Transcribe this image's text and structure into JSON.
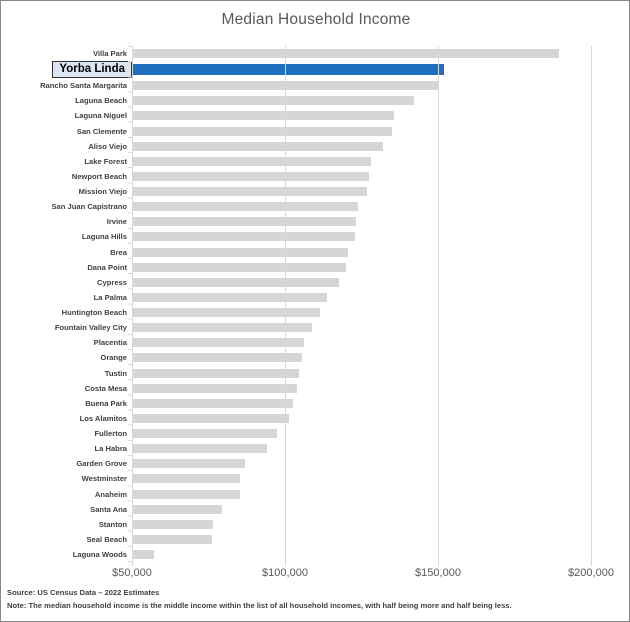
{
  "title": "Median Household Income",
  "footer": {
    "source": "Source: US Census Data – 2022 Estimates",
    "note": "Note: The median household income is the middle income within the list of all household incomes, with half being more and half being less."
  },
  "colors": {
    "bar_gray": "#d6d6d6",
    "bar_highlight_blue": "#1f6fbe",
    "highlight_box_fill": "#dce6f2",
    "highlight_box_border": "#303030",
    "title_text": "#595959",
    "category_text": "#404040",
    "gridline": "#d9d9d9"
  },
  "chart_data": {
    "type": "bar",
    "orientation": "horizontal",
    "title": "Median Household Income",
    "xlabel": "",
    "ylabel": "",
    "grid": "vertical-gridlines",
    "legend_position": "none",
    "xlim": [
      50000,
      202000
    ],
    "tick_values": [
      50000,
      100000,
      150000,
      200000
    ],
    "tick_labels": [
      "$50,000",
      "$100,000",
      "$150,000",
      "$200,000"
    ],
    "highlighted_category": "Yorba Linda",
    "categories": [
      "Villa Park",
      "Yorba Linda",
      "Rancho Santa Margarita",
      "Laguna Beach",
      "Laguna Niguel",
      "San Clemente",
      "Aliso Viejo",
      "Lake Forest",
      "Newport Beach",
      "Mission Viejo",
      "San Juan Capistrano",
      "Irvine",
      "Laguna Hills",
      "Brea",
      "Dana Point",
      "Cypress",
      "La Palma",
      "Huntington Beach",
      "Fountain Valley City",
      "Placentia",
      "Orange",
      "Tustin",
      "Costa Mesa",
      "Buena Park",
      "Los Alamitos",
      "Fullerton",
      "La Habra",
      "Garden Grove",
      "Westminster",
      "Anaheim",
      "Santa Ana",
      "Stanton",
      "Seal Beach",
      "Laguna Woods"
    ],
    "values": [
      189500,
      152000,
      150000,
      142000,
      135700,
      135000,
      132000,
      128000,
      127400,
      126700,
      124000,
      123200,
      123000,
      120500,
      120000,
      117500,
      113600,
      111300,
      108800,
      106100,
      105600,
      104600,
      104000,
      102600,
      101200,
      97300,
      94000,
      87000,
      85400,
      85200,
      79300,
      76400,
      76000,
      57200
    ]
  }
}
